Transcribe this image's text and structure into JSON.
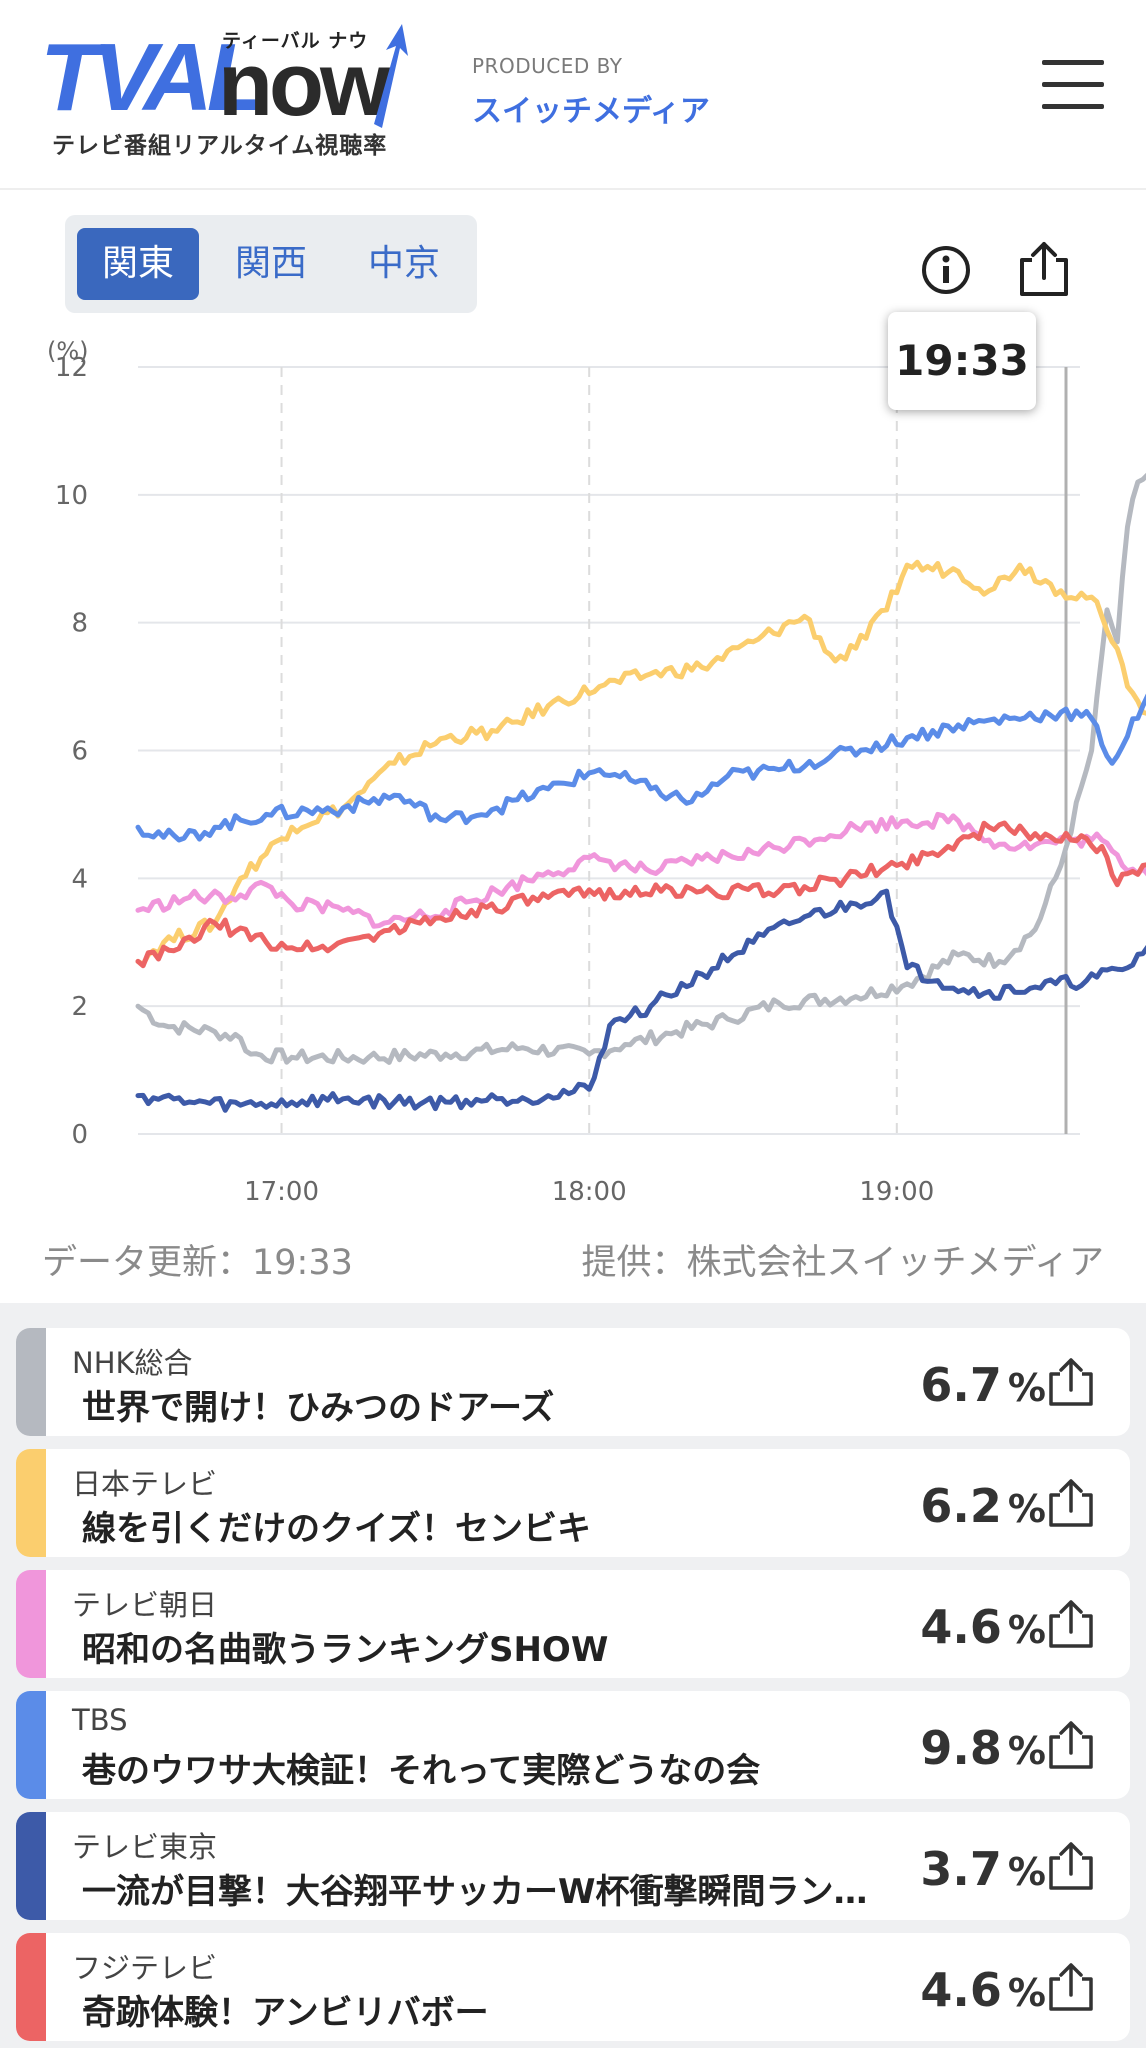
{
  "header": {
    "logo_main": "TVAL",
    "logo_now": "now",
    "logo_kana": "ティーバル ナウ",
    "logo_sub": "テレビ番組リアルタイム視聴率",
    "produced_by": "PRODUCED BY",
    "producer": "スイッチメディア"
  },
  "regions": [
    "関東",
    "関西",
    "中京"
  ],
  "active_region": "関東",
  "chart_tooltip": "19:33",
  "update_label": "データ更新：19:33",
  "provider_label": "提供：株式会社スイッチメディア",
  "chart_data": {
    "type": "line",
    "yunit": "(%)",
    "ylim": [
      0,
      12
    ],
    "yticks": [
      0,
      2,
      4,
      6,
      8,
      10,
      12
    ],
    "xticks": [
      "17:00",
      "18:00",
      "19:00"
    ],
    "x_range": [
      "16:32",
      "19:33"
    ],
    "grid": true,
    "series": [
      {
        "name": "NHK総合",
        "color": "#b5b9c0",
        "points": [
          [
            0,
            2.0
          ],
          [
            5,
            1.7
          ],
          [
            15,
            1.6
          ],
          [
            20,
            1.5
          ],
          [
            22,
            1.25
          ],
          [
            30,
            1.2
          ],
          [
            45,
            1.2
          ],
          [
            60,
            1.25
          ],
          [
            75,
            1.35
          ],
          [
            88,
            1.25
          ],
          [
            95,
            1.4
          ],
          [
            105,
            1.6
          ],
          [
            115,
            1.8
          ],
          [
            125,
            2.05
          ],
          [
            140,
            2.15
          ],
          [
            150,
            2.35
          ],
          [
            160,
            2.8
          ],
          [
            168,
            2.7
          ],
          [
            175,
            3.2
          ],
          [
            180,
            4.2
          ],
          [
            186,
            6.0
          ],
          [
            189,
            8.2
          ],
          [
            191,
            7.7
          ],
          [
            193,
            9.5
          ],
          [
            195,
            10.2
          ],
          [
            200,
            10.5
          ],
          [
            210,
            10.6
          ],
          [
            218,
            10.5
          ],
          [
            222,
            10.3
          ],
          [
            224,
            8.0
          ],
          [
            227,
            6.7
          ]
        ]
      },
      {
        "name": "日本テレビ",
        "color": "#fbce6e",
        "points": [
          [
            0,
            2.7
          ],
          [
            5,
            3.0
          ],
          [
            15,
            3.3
          ],
          [
            20,
            4.0
          ],
          [
            30,
            4.8
          ],
          [
            40,
            5.1
          ],
          [
            50,
            5.8
          ],
          [
            60,
            6.2
          ],
          [
            70,
            6.3
          ],
          [
            80,
            6.7
          ],
          [
            90,
            7.0
          ],
          [
            100,
            7.2
          ],
          [
            110,
            7.3
          ],
          [
            120,
            7.7
          ],
          [
            130,
            8.1
          ],
          [
            136,
            7.4
          ],
          [
            140,
            7.6
          ],
          [
            146,
            8.2
          ],
          [
            150,
            8.9
          ],
          [
            160,
            8.8
          ],
          [
            166,
            8.5
          ],
          [
            172,
            8.9
          ],
          [
            180,
            8.5
          ],
          [
            186,
            8.4
          ],
          [
            190,
            7.7
          ],
          [
            194,
            6.9
          ],
          [
            200,
            6.3
          ],
          [
            210,
            5.9
          ],
          [
            220,
            6.0
          ],
          [
            227,
            6.2
          ]
        ]
      },
      {
        "name": "テレビ朝日",
        "color": "#f096db",
        "points": [
          [
            0,
            3.5
          ],
          [
            10,
            3.7
          ],
          [
            18,
            3.7
          ],
          [
            25,
            3.9
          ],
          [
            30,
            3.6
          ],
          [
            40,
            3.5
          ],
          [
            48,
            3.3
          ],
          [
            60,
            3.5
          ],
          [
            70,
            3.8
          ],
          [
            80,
            4.1
          ],
          [
            90,
            4.3
          ],
          [
            100,
            4.1
          ],
          [
            110,
            4.3
          ],
          [
            120,
            4.4
          ],
          [
            130,
            4.6
          ],
          [
            140,
            4.8
          ],
          [
            150,
            4.9
          ],
          [
            160,
            4.9
          ],
          [
            166,
            4.6
          ],
          [
            172,
            4.5
          ],
          [
            182,
            4.6
          ],
          [
            188,
            4.6
          ],
          [
            192,
            4.2
          ],
          [
            200,
            4.1
          ],
          [
            210,
            4.0
          ],
          [
            220,
            4.3
          ],
          [
            227,
            4.6
          ]
        ]
      },
      {
        "name": "TBS",
        "color": "#5b8ce8",
        "points": [
          [
            0,
            4.8
          ],
          [
            8,
            4.6
          ],
          [
            15,
            4.8
          ],
          [
            25,
            5.0
          ],
          [
            40,
            5.1
          ],
          [
            50,
            5.3
          ],
          [
            60,
            4.9
          ],
          [
            70,
            5.1
          ],
          [
            80,
            5.4
          ],
          [
            90,
            5.7
          ],
          [
            100,
            5.4
          ],
          [
            108,
            5.2
          ],
          [
            115,
            5.6
          ],
          [
            125,
            5.7
          ],
          [
            135,
            5.9
          ],
          [
            150,
            6.2
          ],
          [
            160,
            6.4
          ],
          [
            170,
            6.5
          ],
          [
            180,
            6.6
          ],
          [
            186,
            6.5
          ],
          [
            190,
            5.8
          ],
          [
            196,
            6.7
          ],
          [
            205,
            7.5
          ],
          [
            212,
            8.3
          ],
          [
            218,
            8.8
          ],
          [
            224,
            9.3
          ],
          [
            227,
            9.8
          ]
        ]
      },
      {
        "name": "テレビ東京",
        "color": "#3d5aa8",
        "points": [
          [
            0,
            0.6
          ],
          [
            10,
            0.5
          ],
          [
            20,
            0.45
          ],
          [
            30,
            0.5
          ],
          [
            40,
            0.55
          ],
          [
            50,
            0.5
          ],
          [
            60,
            0.5
          ],
          [
            70,
            0.55
          ],
          [
            80,
            0.6
          ],
          [
            88,
            0.7
          ],
          [
            92,
            1.7
          ],
          [
            100,
            2.0
          ],
          [
            110,
            2.5
          ],
          [
            120,
            3.0
          ],
          [
            130,
            3.4
          ],
          [
            140,
            3.6
          ],
          [
            146,
            3.8
          ],
          [
            150,
            2.6
          ],
          [
            156,
            2.4
          ],
          [
            165,
            2.2
          ],
          [
            175,
            2.3
          ],
          [
            185,
            2.4
          ],
          [
            193,
            2.6
          ],
          [
            200,
            3.2
          ],
          [
            210,
            3.3
          ],
          [
            220,
            3.4
          ],
          [
            227,
            3.7
          ]
        ]
      },
      {
        "name": "フジテレビ",
        "color": "#ec6464",
        "points": [
          [
            0,
            2.7
          ],
          [
            8,
            2.9
          ],
          [
            15,
            3.3
          ],
          [
            25,
            3.0
          ],
          [
            35,
            2.9
          ],
          [
            45,
            3.1
          ],
          [
            55,
            3.3
          ],
          [
            65,
            3.5
          ],
          [
            80,
            3.7
          ],
          [
            95,
            3.8
          ],
          [
            110,
            3.8
          ],
          [
            125,
            3.8
          ],
          [
            138,
            4.0
          ],
          [
            148,
            4.2
          ],
          [
            158,
            4.5
          ],
          [
            166,
            4.8
          ],
          [
            175,
            4.7
          ],
          [
            182,
            4.6
          ],
          [
            188,
            4.5
          ],
          [
            191,
            3.9
          ],
          [
            196,
            4.2
          ],
          [
            205,
            4.2
          ],
          [
            215,
            4.1
          ],
          [
            222,
            4.3
          ],
          [
            227,
            4.6
          ]
        ]
      }
    ]
  },
  "programs": [
    {
      "station": "NHK総合",
      "title": "世界で開け！ひみつのドアーズ",
      "rating": "6.7",
      "unit": "%",
      "color": "#b5b9c0"
    },
    {
      "station": "日本テレビ",
      "title": "線を引くだけのクイズ！センビキ",
      "rating": "6.2",
      "unit": "%",
      "color": "#fbce6e"
    },
    {
      "station": "テレビ朝日",
      "title": "昭和の名曲歌うランキングSHOW",
      "rating": "4.6",
      "unit": "%",
      "color": "#f096db"
    },
    {
      "station": "TBS",
      "title": "巷のウワサ大検証！それって実際どうなの会",
      "rating": "9.8",
      "unit": "%",
      "color": "#5b8ce8"
    },
    {
      "station": "テレビ東京",
      "title": "一流が目撃！大谷翔平サッカーW杯衝撃瞬間ランキング",
      "rating": "3.7",
      "unit": "%",
      "color": "#3d5aa8"
    },
    {
      "station": "フジテレビ",
      "title": "奇跡体験！アンビリバボー",
      "rating": "4.6",
      "unit": "%",
      "color": "#ec6464"
    }
  ]
}
